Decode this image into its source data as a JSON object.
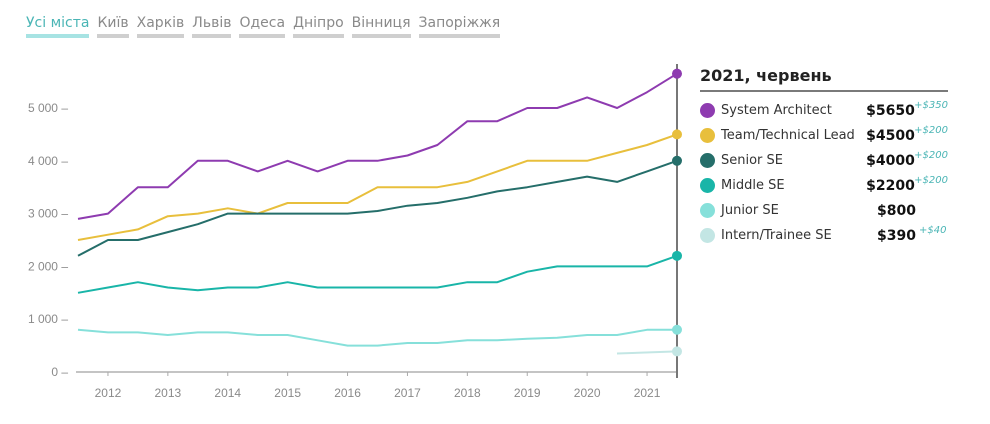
{
  "tabs": [
    {
      "label": "Усі міста",
      "active": true
    },
    {
      "label": "Київ",
      "active": false
    },
    {
      "label": "Харків",
      "active": false
    },
    {
      "label": "Львів",
      "active": false
    },
    {
      "label": "Одеса",
      "active": false
    },
    {
      "label": "Дніпро",
      "active": false
    },
    {
      "label": "Вінниця",
      "active": false
    },
    {
      "label": "Запоріжжя",
      "active": false
    }
  ],
  "legend": {
    "title": "2021, червень",
    "items": [
      {
        "name": "System Architect",
        "value": "$5650",
        "delta": "+$350",
        "color": "#8e3bb0"
      },
      {
        "name": "Team/Technical Lead",
        "value": "$4500",
        "delta": "+$200",
        "color": "#e8bf3c"
      },
      {
        "name": "Senior SE",
        "value": "$4000",
        "delta": "+$200",
        "color": "#256e6a"
      },
      {
        "name": "Middle SE",
        "value": "$2200",
        "delta": "+$200",
        "color": "#19b5a8"
      },
      {
        "name": "Junior SE",
        "value": "$800",
        "delta": "",
        "color": "#86e0da"
      },
      {
        "name": "Intern/Trainee SE",
        "value": "$390",
        "delta": "+$40",
        "color": "#c3e6e4"
      }
    ]
  },
  "chart_data": {
    "type": "line",
    "title": "",
    "xlabel": "",
    "ylabel": "",
    "x": [
      2011.5,
      2012,
      2012.5,
      2013,
      2013.5,
      2014,
      2014.5,
      2015,
      2015.5,
      2016,
      2016.5,
      2017,
      2017.5,
      2018,
      2018.5,
      2019,
      2019.5,
      2020,
      2020.5,
      2021,
      2021.5
    ],
    "xlim": [
      2011.4,
      2021.5
    ],
    "ylim": [
      0,
      5800
    ],
    "yticks": [
      0,
      1000,
      2000,
      3000,
      4000,
      5000
    ],
    "ytick_labels": [
      "0",
      "1 000",
      "2 000",
      "3 000",
      "4 000",
      "5 000"
    ],
    "xticks": [
      2012,
      2013,
      2014,
      2015,
      2016,
      2017,
      2018,
      2019,
      2020,
      2021
    ],
    "xtick_labels": [
      "2012",
      "2013",
      "2014",
      "2015",
      "2016",
      "2017",
      "2018",
      "2019",
      "2020",
      "2021"
    ],
    "grid": false,
    "legend_position": "right",
    "highlight_x": 2021.5,
    "series": [
      {
        "name": "System Architect",
        "color": "#8e3bb0",
        "values": [
          2900,
          3000,
          3500,
          3500,
          4000,
          4000,
          3800,
          4000,
          3800,
          4000,
          4000,
          4100,
          4300,
          4750,
          4750,
          5000,
          5000,
          5200,
          5000,
          5300,
          5650
        ]
      },
      {
        "name": "Team/Technical Lead",
        "color": "#e8bf3c",
        "values": [
          2500,
          2600,
          2700,
          2950,
          3000,
          3100,
          3000,
          3200,
          3200,
          3200,
          3500,
          3500,
          3500,
          3600,
          3800,
          4000,
          4000,
          4000,
          4150,
          4300,
          4500
        ]
      },
      {
        "name": "Senior SE",
        "color": "#256e6a",
        "values": [
          2200,
          2500,
          2500,
          2650,
          2800,
          3000,
          3000,
          3000,
          3000,
          3000,
          3050,
          3150,
          3200,
          3300,
          3420,
          3500,
          3600,
          3700,
          3600,
          3800,
          4000
        ]
      },
      {
        "name": "Middle SE",
        "color": "#19b5a8",
        "values": [
          1500,
          1600,
          1700,
          1600,
          1550,
          1600,
          1600,
          1700,
          1600,
          1600,
          1600,
          1600,
          1600,
          1700,
          1700,
          1900,
          2000,
          2000,
          2000,
          2000,
          2200
        ]
      },
      {
        "name": "Junior SE",
        "color": "#86e0da",
        "values": [
          800,
          750,
          750,
          700,
          750,
          750,
          700,
          700,
          600,
          500,
          500,
          550,
          550,
          600,
          600,
          630,
          650,
          700,
          700,
          800,
          800
        ]
      },
      {
        "name": "Intern/Trainee SE",
        "color": "#c3e6e4",
        "values": [
          null,
          null,
          null,
          null,
          null,
          null,
          null,
          null,
          null,
          null,
          null,
          null,
          null,
          null,
          null,
          null,
          null,
          null,
          null,
          350,
          390
        ]
      }
    ]
  }
}
